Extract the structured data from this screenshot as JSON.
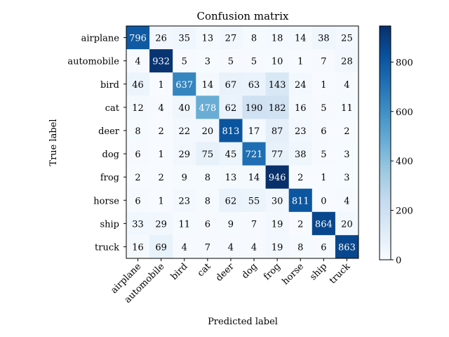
{
  "chart_data": {
    "type": "heatmap",
    "title": "Confusion matrix",
    "xlabel": "Predicted label",
    "ylabel": "True label",
    "categories": [
      "airplane",
      "automobile",
      "bird",
      "cat",
      "deer",
      "dog",
      "frog",
      "horse",
      "ship",
      "truck"
    ],
    "matrix": [
      [
        796,
        26,
        35,
        13,
        27,
        8,
        18,
        14,
        38,
        25
      ],
      [
        4,
        932,
        5,
        3,
        5,
        5,
        10,
        1,
        7,
        28
      ],
      [
        46,
        1,
        637,
        14,
        67,
        63,
        143,
        24,
        1,
        4
      ],
      [
        12,
        4,
        40,
        478,
        62,
        190,
        182,
        16,
        5,
        11
      ],
      [
        8,
        2,
        22,
        20,
        813,
        17,
        87,
        23,
        6,
        2
      ],
      [
        6,
        1,
        29,
        75,
        45,
        721,
        77,
        38,
        5,
        3
      ],
      [
        2,
        2,
        9,
        8,
        13,
        14,
        946,
        2,
        1,
        3
      ],
      [
        6,
        1,
        23,
        8,
        62,
        55,
        30,
        811,
        0,
        4
      ],
      [
        33,
        29,
        11,
        6,
        9,
        7,
        19,
        2,
        864,
        20
      ],
      [
        16,
        69,
        4,
        7,
        4,
        4,
        19,
        8,
        6,
        863
      ]
    ],
    "colorbar": {
      "min": 0,
      "max": 946,
      "ticks": [
        0,
        200,
        400,
        600,
        800
      ]
    },
    "colormap": "Blues",
    "colors": {
      "low": "#f7fbff",
      "high": "#08306b",
      "text_dark": "#000000",
      "text_light": "#ffffff"
    }
  }
}
